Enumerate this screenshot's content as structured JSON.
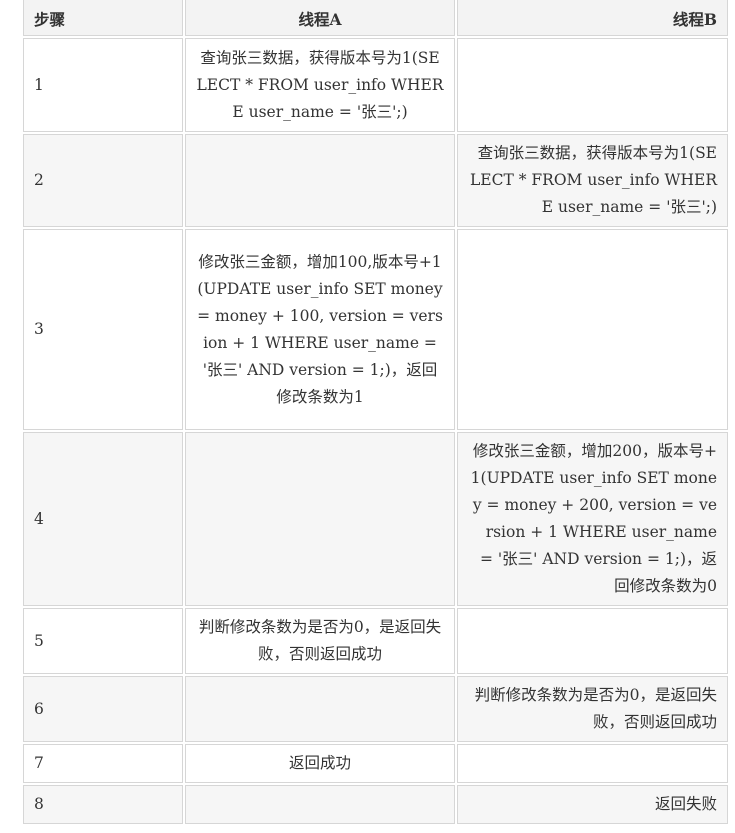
{
  "table": {
    "headers": {
      "step": "步骤",
      "thread_a": "线程A",
      "thread_b": "线程B"
    },
    "rows": [
      {
        "step": "1",
        "thread_a": "查询张三数据，获得版本号为1(SELECT * FROM user_info WHERE user_name = '张三';)",
        "thread_b": ""
      },
      {
        "step": "2",
        "thread_a": "",
        "thread_b": "查询张三数据，获得版本号为1(SELECT * FROM user_info WHERE user_name = '张三';)"
      },
      {
        "step": "3",
        "thread_a": "修改张三金额，增加100,版本号+1(UPDATE user_info SET money = money + 100, version = version + 1 WHERE user_name = '张三' AND version = 1;)，返回修改条数为1",
        "thread_b": ""
      },
      {
        "step": "4",
        "thread_a": "",
        "thread_b": "修改张三金额，增加200，版本号+1(UPDATE user_info SET money = money + 200, version = version + 1 WHERE user_name = '张三' AND version = 1;)，返回修改条数为0"
      },
      {
        "step": "5",
        "thread_a": "判断修改条数为是否为0，是返回失败，否则返回成功",
        "thread_b": ""
      },
      {
        "step": "6",
        "thread_a": "",
        "thread_b": "判断修改条数为是否为0，是返回失败，否则返回成功"
      },
      {
        "step": "7",
        "thread_a": "返回成功",
        "thread_b": ""
      },
      {
        "step": "8",
        "thread_a": "",
        "thread_b": "返回失败"
      }
    ]
  }
}
